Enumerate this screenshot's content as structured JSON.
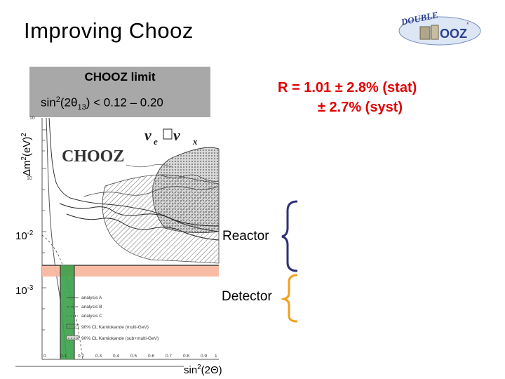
{
  "slide": {
    "title": "Improving Chooz"
  },
  "limit_box": {
    "title": "CHOOZ limit",
    "text_prefix": "sin",
    "text_sup": "2",
    "text_mid": "(2θ",
    "text_sub": "13",
    "text_suffix": ") < 0.12 – 0.20"
  },
  "result_box": {
    "line1": "R = 1.01 ± 2.8% (stat)",
    "line2": "± 2.7% (syst)",
    "color": "#e00000"
  },
  "axis": {
    "ylabel_prefix": "Δm",
    "ylabel_sup1": "2",
    "ylabel_mid": "(eV)",
    "ylabel_sup2": "2",
    "tick_1_base": "10",
    "tick_1_exp": "-2",
    "tick_2_base": "10",
    "tick_2_exp": "-3",
    "xlabel_prefix": "sin",
    "xlabel_sup": "2",
    "xlabel_suffix": "(2Θ)"
  },
  "labels": {
    "reactor": "Reactor",
    "detector": "Detector"
  },
  "figure": {
    "logo_text": "CHOOZ",
    "oscillation_prefix": "ν",
    "oscillation_sub": "e",
    "oscillation_suffix": " ν",
    "oscillation_sub2": "x",
    "legend": [
      "analysis A",
      "analysis B",
      "analysis C",
      "90% CL Kamiokande (multi-GeV)",
      "90% CL Kamiokande (sub+multi-GeV)"
    ],
    "x_ticks": [
      "0",
      "0.1",
      "0.2",
      "0.3",
      "0.4",
      "0.5",
      "0.6",
      "0.7",
      "0.8",
      "0.9",
      "1"
    ],
    "y_tick_top": "10",
    "y_tick_mid": "10"
  },
  "brackets": {
    "reactor_color": "#2f2f7a",
    "detector_color": "#f0a020"
  },
  "band_colors": {
    "reactor_band": "#f8b8a0",
    "detector_band": "#3aa048"
  }
}
